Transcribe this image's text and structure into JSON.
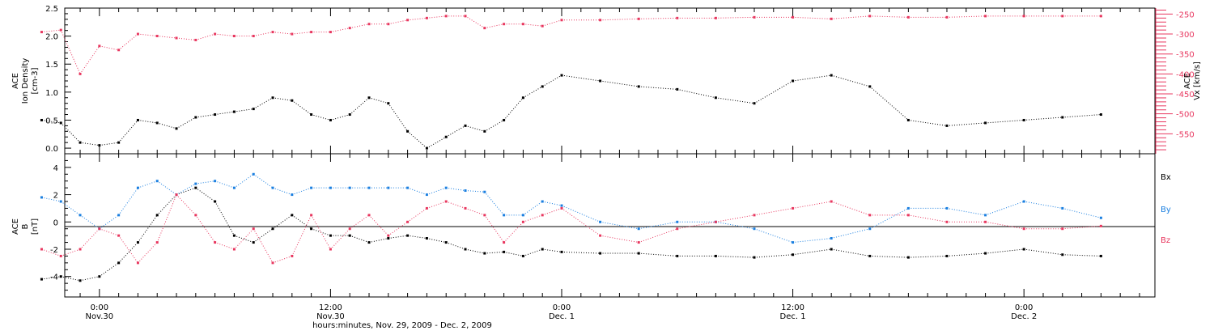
{
  "colors": {
    "black": "#000000",
    "pink": "#e8375f",
    "blue": "#1a7fe0"
  },
  "chart_data": [
    {
      "type": "scatter",
      "panel": "top",
      "ylabel_left": [
        "ACE",
        "Ion Density",
        "[cm-3]"
      ],
      "ylabel_right": [
        "ACE",
        "Vx [km/s]"
      ],
      "left_ylim": [
        -0.1,
        2.5
      ],
      "right_ylim": [
        -600,
        -235
      ],
      "left_ticks": [
        "0.0",
        "0.5",
        "1.0",
        "1.5",
        "2.0",
        "2.5"
      ],
      "right_ticks": [
        "-250",
        "-300",
        "-350",
        "-400",
        "-450",
        "-500",
        "-550"
      ],
      "series": [
        {
          "color": "pink",
          "axis": "right",
          "x": [
            -3,
            -2,
            -1,
            0,
            1,
            2,
            3,
            4,
            5,
            6,
            7,
            8,
            9,
            10,
            11,
            12,
            13,
            14,
            15,
            16,
            17,
            18,
            19,
            20,
            21,
            22,
            23,
            24,
            26,
            28,
            30,
            32,
            34,
            36,
            38,
            40,
            42,
            44,
            46,
            48,
            50,
            52
          ],
          "y": [
            -295,
            -290,
            -400,
            -330,
            -340,
            -300,
            -305,
            -310,
            -315,
            -300,
            -305,
            -305,
            -295,
            -300,
            -295,
            -295,
            -285,
            -275,
            -275,
            -265,
            -260,
            -255,
            -255,
            -285,
            -275,
            -275,
            -280,
            -265,
            -265,
            -262,
            -260,
            -260,
            -258,
            -258,
            -262,
            -255,
            -258,
            -258,
            -255,
            -255,
            -255,
            -255
          ]
        },
        {
          "color": "black",
          "axis": "left",
          "x": [
            -3,
            -2,
            -1,
            0,
            1,
            2,
            3,
            4,
            5,
            6,
            7,
            8,
            9,
            10,
            11,
            12,
            13,
            14,
            15,
            16,
            17,
            18,
            19,
            20,
            21,
            22,
            23,
            24,
            26,
            28,
            30,
            32,
            34,
            36,
            38,
            40,
            42,
            44,
            46,
            48,
            50,
            52
          ],
          "y": [
            0.5,
            0.45,
            0.1,
            0.05,
            0.1,
            0.5,
            0.45,
            0.35,
            0.55,
            0.6,
            0.65,
            0.7,
            0.9,
            0.85,
            0.6,
            0.5,
            0.6,
            0.9,
            0.8,
            0.3,
            0.0,
            0.2,
            0.4,
            0.3,
            0.5,
            0.9,
            1.1,
            1.3,
            1.2,
            1.1,
            1.05,
            0.9,
            0.8,
            1.2,
            1.3,
            1.1,
            0.5,
            0.4,
            0.45,
            0.5,
            0.55,
            0.6
          ]
        }
      ]
    },
    {
      "type": "scatter",
      "panel": "bottom",
      "ylabel_left": [
        "ACE",
        "B",
        "[nT]"
      ],
      "ylim": [
        -5.5,
        5
      ],
      "ticks": [
        "-4",
        "-2",
        "0",
        "2",
        "4"
      ],
      "legend": [
        "Bx",
        "By",
        "Bz"
      ],
      "legend_placement": "right",
      "series": [
        {
          "name": "Bx",
          "color": "black",
          "x": [
            -3,
            -2,
            -1,
            0,
            1,
            2,
            3,
            4,
            5,
            6,
            7,
            8,
            9,
            10,
            11,
            12,
            13,
            14,
            15,
            16,
            17,
            18,
            19,
            20,
            21,
            22,
            23,
            24,
            26,
            28,
            30,
            32,
            34,
            36,
            38,
            40,
            42,
            44,
            46,
            48,
            50,
            52
          ],
          "y": [
            -4.2,
            -4.0,
            -4.3,
            -4.0,
            -3.0,
            -1.5,
            0.5,
            2.0,
            2.5,
            1.5,
            -1.0,
            -1.5,
            -0.5,
            0.5,
            -0.5,
            -1.0,
            -1.0,
            -1.5,
            -1.2,
            -1.0,
            -1.2,
            -1.5,
            -2.0,
            -2.3,
            -2.2,
            -2.5,
            -2.0,
            -2.2,
            -2.3,
            -2.3,
            -2.5,
            -2.5,
            -2.6,
            -2.4,
            -2.0,
            -2.5,
            -2.6,
            -2.5,
            -2.3,
            -2.0,
            -2.4,
            -2.5
          ]
        },
        {
          "name": "By",
          "color": "blue",
          "x": [
            -3,
            -2,
            -1,
            0,
            1,
            2,
            3,
            4,
            5,
            6,
            7,
            8,
            9,
            10,
            11,
            12,
            13,
            14,
            15,
            16,
            17,
            18,
            19,
            20,
            21,
            22,
            23,
            24,
            26,
            28,
            30,
            32,
            34,
            36,
            38,
            40,
            42,
            44,
            46,
            48,
            50,
            52
          ],
          "y": [
            1.8,
            1.5,
            0.5,
            -0.5,
            0.5,
            2.5,
            3.0,
            2.0,
            2.8,
            3.0,
            2.5,
            3.5,
            2.5,
            2.0,
            2.5,
            2.5,
            2.5,
            2.5,
            2.5,
            2.5,
            2.0,
            2.5,
            2.3,
            2.2,
            0.5,
            0.5,
            1.5,
            1.2,
            0.0,
            -0.5,
            0.0,
            0.0,
            -0.5,
            -1.5,
            -1.2,
            -0.5,
            1.0,
            1.0,
            0.5,
            1.5,
            1.0,
            0.3
          ]
        },
        {
          "name": "Bz",
          "color": "pink",
          "x": [
            -3,
            -2,
            -1,
            0,
            1,
            2,
            3,
            4,
            5,
            6,
            7,
            8,
            9,
            10,
            11,
            12,
            13,
            14,
            15,
            16,
            17,
            18,
            19,
            20,
            21,
            22,
            23,
            24,
            26,
            28,
            30,
            32,
            34,
            36,
            38,
            40,
            42,
            44,
            46,
            48,
            50,
            52
          ],
          "y": [
            -2.0,
            -2.5,
            -2.0,
            -0.5,
            -1.0,
            -3.0,
            -1.5,
            2.0,
            0.5,
            -1.5,
            -2.0,
            -0.5,
            -3.0,
            -2.5,
            0.5,
            -2.0,
            -0.5,
            0.5,
            -1.0,
            0.0,
            1.0,
            1.5,
            1.0,
            0.5,
            -1.5,
            0.0,
            0.5,
            1.0,
            -1.0,
            -1.5,
            -0.5,
            0.0,
            0.5,
            1.0,
            1.5,
            0.5,
            0.5,
            0.0,
            0.0,
            -0.5,
            -0.5,
            -0.3
          ]
        }
      ]
    }
  ],
  "xaxis": {
    "ticks": [
      {
        "hour": 0,
        "time": "0:00",
        "date": "Nov.30"
      },
      {
        "hour": 12,
        "time": "12:00",
        "date": "Nov.30"
      },
      {
        "hour": 24,
        "time": "0:00",
        "date": "Dec. 1"
      },
      {
        "hour": 36,
        "time": "12:00",
        "date": "Dec. 1"
      },
      {
        "hour": 48,
        "time": "0:00",
        "date": "Dec. 2"
      }
    ],
    "range": [
      -1.8,
      54.8
    ],
    "title": "hours:minutes, Nov. 29, 2009 - Dec. 2, 2009"
  }
}
